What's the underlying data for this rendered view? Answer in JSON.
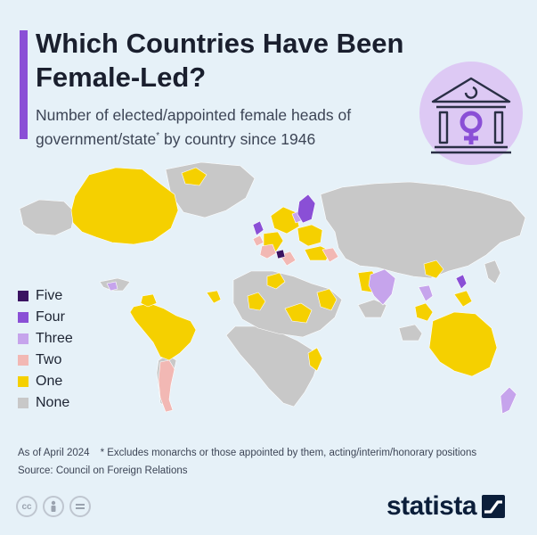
{
  "header": {
    "title": "Which Countries Have Been Female-Led?",
    "subtitle": "Number of elected/appointed female heads of government/state",
    "subtitle_mark": "*",
    "subtitle_tail": " by country since 1946"
  },
  "legend": {
    "items": [
      {
        "label": "Five",
        "color": "#3b1361"
      },
      {
        "label": "Four",
        "color": "#8a4fd6"
      },
      {
        "label": "Three",
        "color": "#c6a4ec"
      },
      {
        "label": "Two",
        "color": "#f2b8b4"
      },
      {
        "label": "One",
        "color": "#f5d000"
      },
      {
        "label": "None",
        "color": "#c8c8c8"
      }
    ]
  },
  "footer": {
    "as_of": "As of April 2024",
    "footnote": "* Excludes monarchs or those appointed by them, acting/interim/honorary positions",
    "source": "Source: Council on Foreign Relations",
    "brand": "statista"
  },
  "colors": {
    "accent": "#8a4fd6",
    "ocean": "#e6f1f8",
    "none": "#c8c8c8",
    "one": "#f5d000",
    "two": "#f2b8b4",
    "three": "#c6a4ec",
    "four": "#8a4fd6",
    "five": "#3b1361",
    "brand": "#0b1e3a"
  },
  "icons": [
    "government-building-icon",
    "female-symbol-icon",
    "cc-icon",
    "attribution-icon",
    "no-derivatives-icon",
    "statista-logo-icon"
  ]
}
